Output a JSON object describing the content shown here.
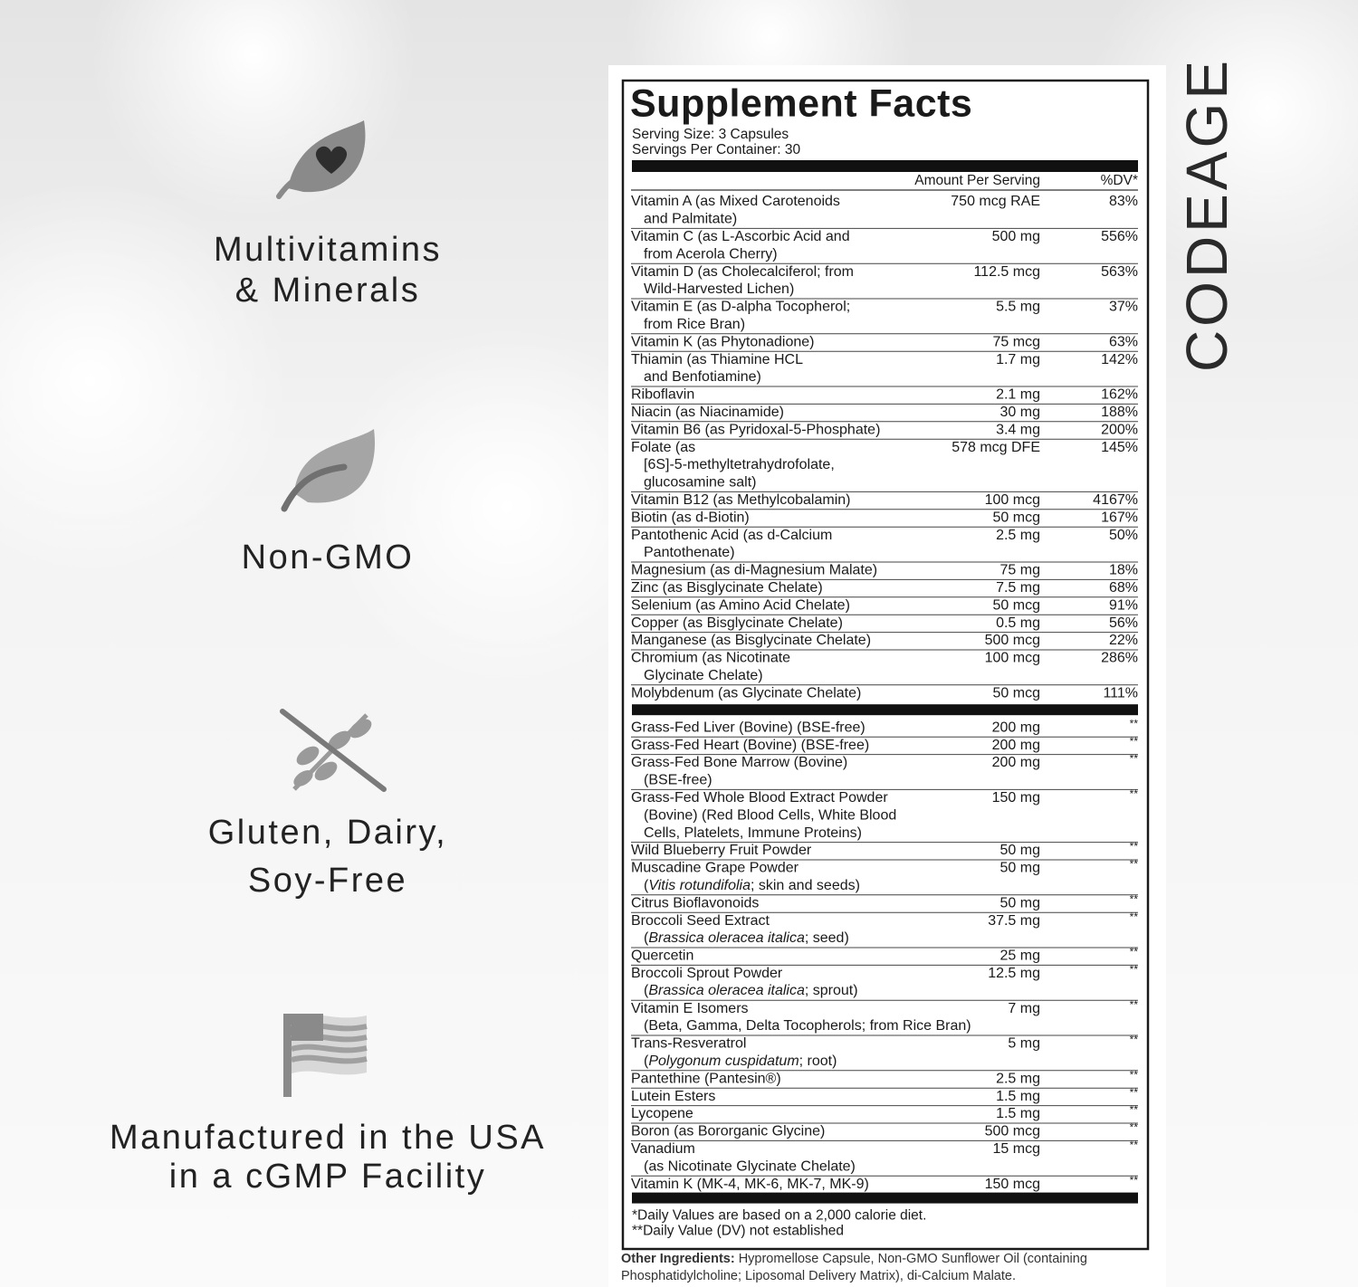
{
  "features": [
    {
      "lines": [
        "Multivitamins",
        "& Minerals"
      ]
    },
    {
      "lines": [
        "Non-GMO"
      ]
    },
    {
      "lines": [
        "Gluten, Dairy,",
        "Soy-Free"
      ]
    },
    {
      "lines": [
        "Manufactured in the USA",
        "in a cGMP Facility"
      ]
    }
  ],
  "brand": "CODEAGE",
  "facts": {
    "title": "Supplement Facts",
    "serving_size": "Serving Size: 3 Capsules",
    "servings_per_container": "Servings Per Container: 30",
    "header": {
      "amount": "Amount Per Serving",
      "dv": "%DV*"
    },
    "vitamins": [
      {
        "name": [
          "Vitamin A (as Mixed Carotenoids",
          "and Palmitate)"
        ],
        "amount": "750 mcg RAE",
        "dv": "83%"
      },
      {
        "name": [
          "Vitamin C (as L-Ascorbic Acid and",
          "from Acerola Cherry)"
        ],
        "amount": "500 mg",
        "dv": "556%"
      },
      {
        "name": [
          "Vitamin D (as Cholecalciferol; from",
          "Wild-Harvested Lichen)"
        ],
        "amount": "112.5 mcg",
        "dv": "563%"
      },
      {
        "name": [
          "Vitamin E (as D-alpha Tocopherol;",
          "from Rice Bran)"
        ],
        "amount": "5.5 mg",
        "dv": "37%"
      },
      {
        "name": [
          "Vitamin K (as Phytonadione)"
        ],
        "amount": "75 mcg",
        "dv": "63%"
      },
      {
        "name": [
          "Thiamin (as Thiamine HCL",
          "and Benfotiamine)"
        ],
        "amount": "1.7 mg",
        "dv": "142%"
      },
      {
        "name": [
          "Riboflavin"
        ],
        "amount": "2.1 mg",
        "dv": "162%"
      },
      {
        "name": [
          "Niacin (as Niacinamide)"
        ],
        "amount": "30 mg",
        "dv": "188%"
      },
      {
        "name": [
          "Vitamin B6 (as Pyridoxal-5-Phosphate)"
        ],
        "amount": "3.4 mg",
        "dv": "200%"
      },
      {
        "name": [
          "Folate (as",
          "[6S]-5-methyltetrahydrofolate,",
          "glucosamine salt)"
        ],
        "amount": "578 mcg DFE",
        "dv": "145%"
      },
      {
        "name": [
          "Vitamin B12 (as Methylcobalamin)"
        ],
        "amount": "100 mcg",
        "dv": "4167%"
      },
      {
        "name": [
          "Biotin (as d-Biotin)"
        ],
        "amount": "50 mcg",
        "dv": "167%"
      },
      {
        "name": [
          "Pantothenic Acid (as d-Calcium",
          "Pantothenate)"
        ],
        "amount": "2.5 mg",
        "dv": "50%"
      },
      {
        "name": [
          "Magnesium (as di-Magnesium Malate)"
        ],
        "amount": "75 mg",
        "dv": "18%"
      },
      {
        "name": [
          "Zinc (as Bisglycinate Chelate)"
        ],
        "amount": "7.5 mg",
        "dv": "68%"
      },
      {
        "name": [
          "Selenium (as Amino Acid Chelate)"
        ],
        "amount": "50 mcg",
        "dv": "91%"
      },
      {
        "name": [
          "Copper (as Bisglycinate Chelate)"
        ],
        "amount": "0.5 mg",
        "dv": "56%"
      },
      {
        "name": [
          "Manganese (as Bisglycinate Chelate)"
        ],
        "amount": "500 mcg",
        "dv": "22%"
      },
      {
        "name": [
          "Chromium (as Nicotinate",
          "Glycinate Chelate)"
        ],
        "amount": "100 mcg",
        "dv": "286%"
      },
      {
        "name": [
          "Molybdenum (as Glycinate Chelate)"
        ],
        "amount": "50 mcg",
        "dv": "111%"
      }
    ],
    "others": [
      {
        "name": [
          "Grass-Fed Liver (Bovine) (BSE-free)"
        ],
        "amount": "200 mg",
        "dv": "**"
      },
      {
        "name": [
          "Grass-Fed Heart (Bovine) (BSE-free)"
        ],
        "amount": "200 mg",
        "dv": "**"
      },
      {
        "name": [
          "Grass-Fed Bone Marrow (Bovine)",
          "(BSE-free)"
        ],
        "amount": "200 mg",
        "dv": "**"
      },
      {
        "name": [
          "Grass-Fed Whole Blood Extract Powder",
          "(Bovine) (Red Blood Cells, White Blood",
          "Cells, Platelets, Immune Proteins)"
        ],
        "amount": "150 mg",
        "dv": "**"
      },
      {
        "name": [
          "Wild Blueberry Fruit Powder"
        ],
        "amount": "50 mg",
        "dv": "**"
      },
      {
        "name": [
          "Muscadine Grape Powder",
          [
            "(",
            "Vitis rotundifolia",
            "; skin and seeds)"
          ]
        ],
        "amount": "50 mg",
        "dv": "**"
      },
      {
        "name": [
          "Citrus Bioflavonoids"
        ],
        "amount": "50 mg",
        "dv": "**"
      },
      {
        "name": [
          "Broccoli Seed Extract",
          [
            "(",
            "Brassica oleracea italica",
            "; seed)"
          ]
        ],
        "amount": "37.5 mg",
        "dv": "**"
      },
      {
        "name": [
          "Quercetin"
        ],
        "amount": "25 mg",
        "dv": "**"
      },
      {
        "name": [
          "Broccoli Sprout Powder",
          [
            "(",
            "Brassica oleracea italica",
            "; sprout)"
          ]
        ],
        "amount": "12.5 mg",
        "dv": "**"
      },
      {
        "name": [
          "Vitamin E Isomers",
          "(Beta, Gamma, Delta Tocopherols; from Rice Bran)"
        ],
        "amount": "7 mg",
        "dv": "**"
      },
      {
        "name": [
          "Trans-Resveratrol",
          [
            "(",
            "Polygonum cuspidatum",
            "; root)"
          ]
        ],
        "amount": "5 mg",
        "dv": "**"
      },
      {
        "name": [
          "Pantethine (Pantesin®)"
        ],
        "amount": "2.5 mg",
        "dv": "**"
      },
      {
        "name": [
          "Lutein Esters"
        ],
        "amount": "1.5 mg",
        "dv": "**"
      },
      {
        "name": [
          "Lycopene"
        ],
        "amount": "1.5 mg",
        "dv": "**"
      },
      {
        "name": [
          "Boron (as Bororganic Glycine)"
        ],
        "amount": "500 mcg",
        "dv": "**"
      },
      {
        "name": [
          "Vanadium",
          "(as Nicotinate Glycinate Chelate)"
        ],
        "amount": "15 mcg",
        "dv": "**"
      },
      {
        "name": [
          "Vitamin K (MK-4, MK-6, MK-7, MK-9)"
        ],
        "amount": "150 mcg",
        "dv": "**"
      }
    ],
    "footnotes": [
      "*Daily Values are based on a 2,000 calorie diet.",
      "**Daily Value (DV) not established"
    ],
    "other_ingredients": {
      "label": "Other Ingredients:",
      "lines": [
        "Hypromellose Capsule, Non-GMO Sunflower Oil (containing",
        "Phosphatidylcholine; Liposomal Delivery Matrix), di-Calcium Malate."
      ]
    }
  }
}
